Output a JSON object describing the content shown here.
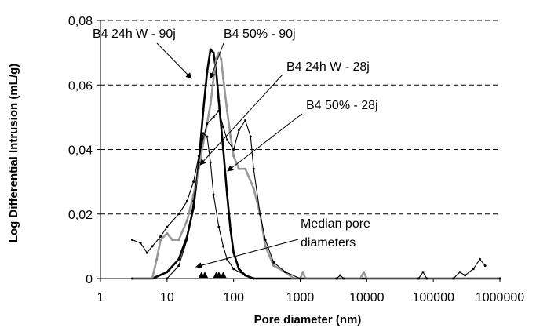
{
  "chart_data": {
    "type": "line",
    "xlabel": "Pore diameter (nm)",
    "ylabel": "Log Differential Intrusion (mL/g)",
    "xscale": "log",
    "xlim": [
      1,
      1000000
    ],
    "ylim": [
      0,
      0.08
    ],
    "x_ticks": [
      "1",
      "10",
      "100",
      "1000",
      "10000",
      "100000",
      "1000000"
    ],
    "y_ticks": [
      "0",
      "0,02",
      "0,04",
      "0,06",
      "0,08"
    ],
    "grid": "horizontal dashed",
    "legend": "none",
    "annotations": [
      {
        "text": "B4 24h W - 90j"
      },
      {
        "text": "B4 50% - 90j"
      },
      {
        "text": "B4 24h W - 28j"
      },
      {
        "text": "B4 50% - 28j"
      },
      {
        "text": "Median pore"
      },
      {
        "text": "diameters"
      }
    ],
    "series": [
      {
        "color": "#000000",
        "style": "thick solid",
        "points": [
          [
            3,
            0
          ],
          [
            6,
            0
          ],
          [
            10,
            0.002
          ],
          [
            15,
            0.006
          ],
          [
            20,
            0.013
          ],
          [
            25,
            0.022
          ],
          [
            30,
            0.036
          ],
          [
            35,
            0.052
          ],
          [
            40,
            0.064
          ],
          [
            45,
            0.071
          ],
          [
            50,
            0.07
          ],
          [
            55,
            0.064
          ],
          [
            60,
            0.055
          ],
          [
            70,
            0.04
          ],
          [
            80,
            0.026
          ],
          [
            90,
            0.015
          ],
          [
            100,
            0.008
          ],
          [
            120,
            0.003
          ],
          [
            150,
            0.001
          ],
          [
            200,
            0
          ],
          [
            1000000,
            0
          ]
        ]
      },
      {
        "color": "#999999",
        "style": "thick solid",
        "points": [
          [
            3,
            0
          ],
          [
            6,
            0
          ],
          [
            7,
            0.006
          ],
          [
            8,
            0.012
          ],
          [
            10,
            0.014
          ],
          [
            12,
            0.012
          ],
          [
            15,
            0.012
          ],
          [
            20,
            0.018
          ],
          [
            25,
            0.026
          ],
          [
            30,
            0.034
          ],
          [
            35,
            0.042
          ],
          [
            40,
            0.048
          ],
          [
            45,
            0.054
          ],
          [
            50,
            0.062
          ],
          [
            55,
            0.068
          ],
          [
            60,
            0.07
          ],
          [
            65,
            0.068
          ],
          [
            70,
            0.062
          ],
          [
            80,
            0.052
          ],
          [
            90,
            0.044
          ],
          [
            100,
            0.038
          ],
          [
            120,
            0.034
          ],
          [
            150,
            0.034
          ],
          [
            200,
            0.028
          ],
          [
            250,
            0.02
          ],
          [
            300,
            0.01
          ],
          [
            400,
            0.004
          ],
          [
            600,
            0.002
          ],
          [
            800,
            0
          ],
          [
            1000,
            0
          ],
          [
            1100,
            0.002
          ],
          [
            1200,
            0
          ],
          [
            8000,
            0
          ],
          [
            9000,
            0.002
          ],
          [
            10000,
            0
          ],
          [
            1000000,
            0
          ]
        ]
      },
      {
        "color": "#000000",
        "style": "thin solid",
        "points": [
          [
            3,
            0.012
          ],
          [
            4,
            0.011
          ],
          [
            5,
            0.008
          ],
          [
            6,
            0.01
          ],
          [
            8,
            0.013
          ],
          [
            10,
            0.016
          ],
          [
            15,
            0.02
          ],
          [
            20,
            0.024
          ],
          [
            25,
            0.03
          ],
          [
            30,
            0.038
          ],
          [
            40,
            0.048
          ],
          [
            50,
            0.05
          ],
          [
            60,
            0.052
          ],
          [
            70,
            0.047
          ],
          [
            80,
            0.043
          ],
          [
            100,
            0.04
          ],
          [
            120,
            0.046
          ],
          [
            150,
            0.049
          ],
          [
            180,
            0.044
          ],
          [
            200,
            0.034
          ],
          [
            250,
            0.02
          ],
          [
            300,
            0.012
          ],
          [
            400,
            0.005
          ],
          [
            600,
            0.002
          ],
          [
            1000,
            0
          ],
          [
            3500,
            0
          ],
          [
            4000,
            0.001
          ],
          [
            4500,
            0
          ],
          [
            60000,
            0
          ],
          [
            70000,
            0.002
          ],
          [
            80000,
            0
          ],
          [
            200000,
            0
          ],
          [
            250000,
            0.002
          ],
          [
            300000,
            0.001
          ],
          [
            400000,
            0.003
          ],
          [
            500000,
            0.006
          ],
          [
            600000,
            0.004
          ]
        ]
      },
      {
        "color": "#000000",
        "style": "thin solid",
        "points": [
          [
            3,
            0
          ],
          [
            10,
            0
          ],
          [
            15,
            0.004
          ],
          [
            20,
            0.012
          ],
          [
            25,
            0.024
          ],
          [
            30,
            0.036
          ],
          [
            35,
            0.045
          ],
          [
            40,
            0.044
          ],
          [
            45,
            0.036
          ],
          [
            50,
            0.026
          ],
          [
            60,
            0.016
          ],
          [
            70,
            0.01
          ],
          [
            80,
            0.006
          ],
          [
            100,
            0.003
          ],
          [
            150,
            0.001
          ],
          [
            200,
            0
          ],
          [
            1000000,
            0
          ]
        ]
      }
    ],
    "median_markers": [
      33,
      37,
      55,
      60,
      70
    ]
  }
}
